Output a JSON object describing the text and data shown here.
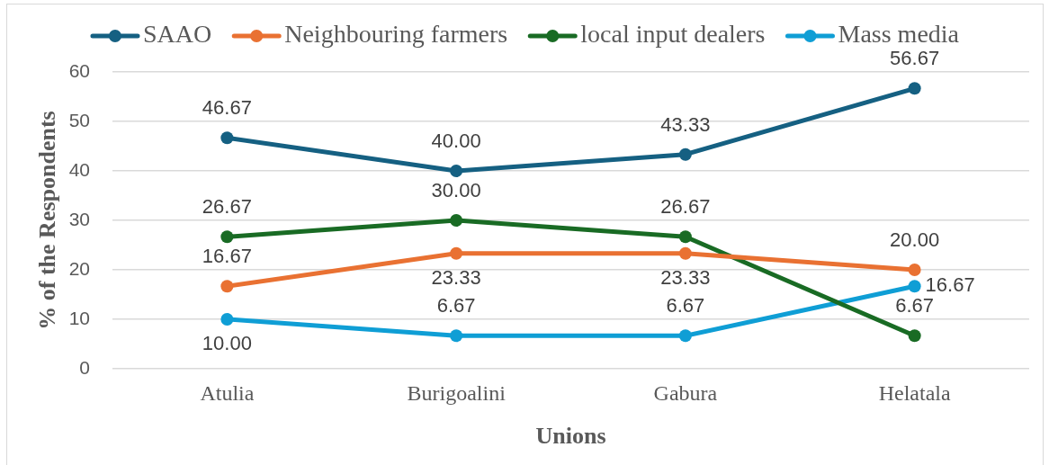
{
  "chart_data": {
    "type": "line",
    "xlabel": "Unions",
    "ylabel": "% of the Respondents",
    "categories": [
      "Atulia",
      "Burigoalini",
      "Gabura",
      "Helatala"
    ],
    "ylim": [
      0,
      60
    ],
    "yticks": [
      0,
      10,
      20,
      30,
      40,
      50,
      60
    ],
    "grid": "y",
    "legend": "top",
    "marker": "circle",
    "series": [
      {
        "name": "SAAO",
        "color": "#156082",
        "values": [
          46.67,
          40,
          43.33,
          56.67
        ],
        "value_labels": [
          "46.67",
          "40.00",
          "43.33",
          "56.67"
        ]
      },
      {
        "name": "Neighbouring farmers",
        "color": "#e97132",
        "values": [
          16.67,
          23.33,
          23.33,
          20
        ],
        "value_labels": [
          "16.67",
          "23.33",
          "23.33",
          "20.00"
        ]
      },
      {
        "name": "local input dealers",
        "color": "#196b24",
        "values": [
          26.67,
          30,
          26.67,
          6.67
        ],
        "value_labels": [
          "26.67",
          "30.00",
          "26.67",
          "6.67"
        ]
      },
      {
        "name": "Mass media",
        "color": "#0f9ed5",
        "values": [
          10,
          6.67,
          6.67,
          16.67
        ],
        "value_labels": [
          "10.00",
          "6.67",
          "6.67",
          "16.67"
        ]
      }
    ]
  }
}
